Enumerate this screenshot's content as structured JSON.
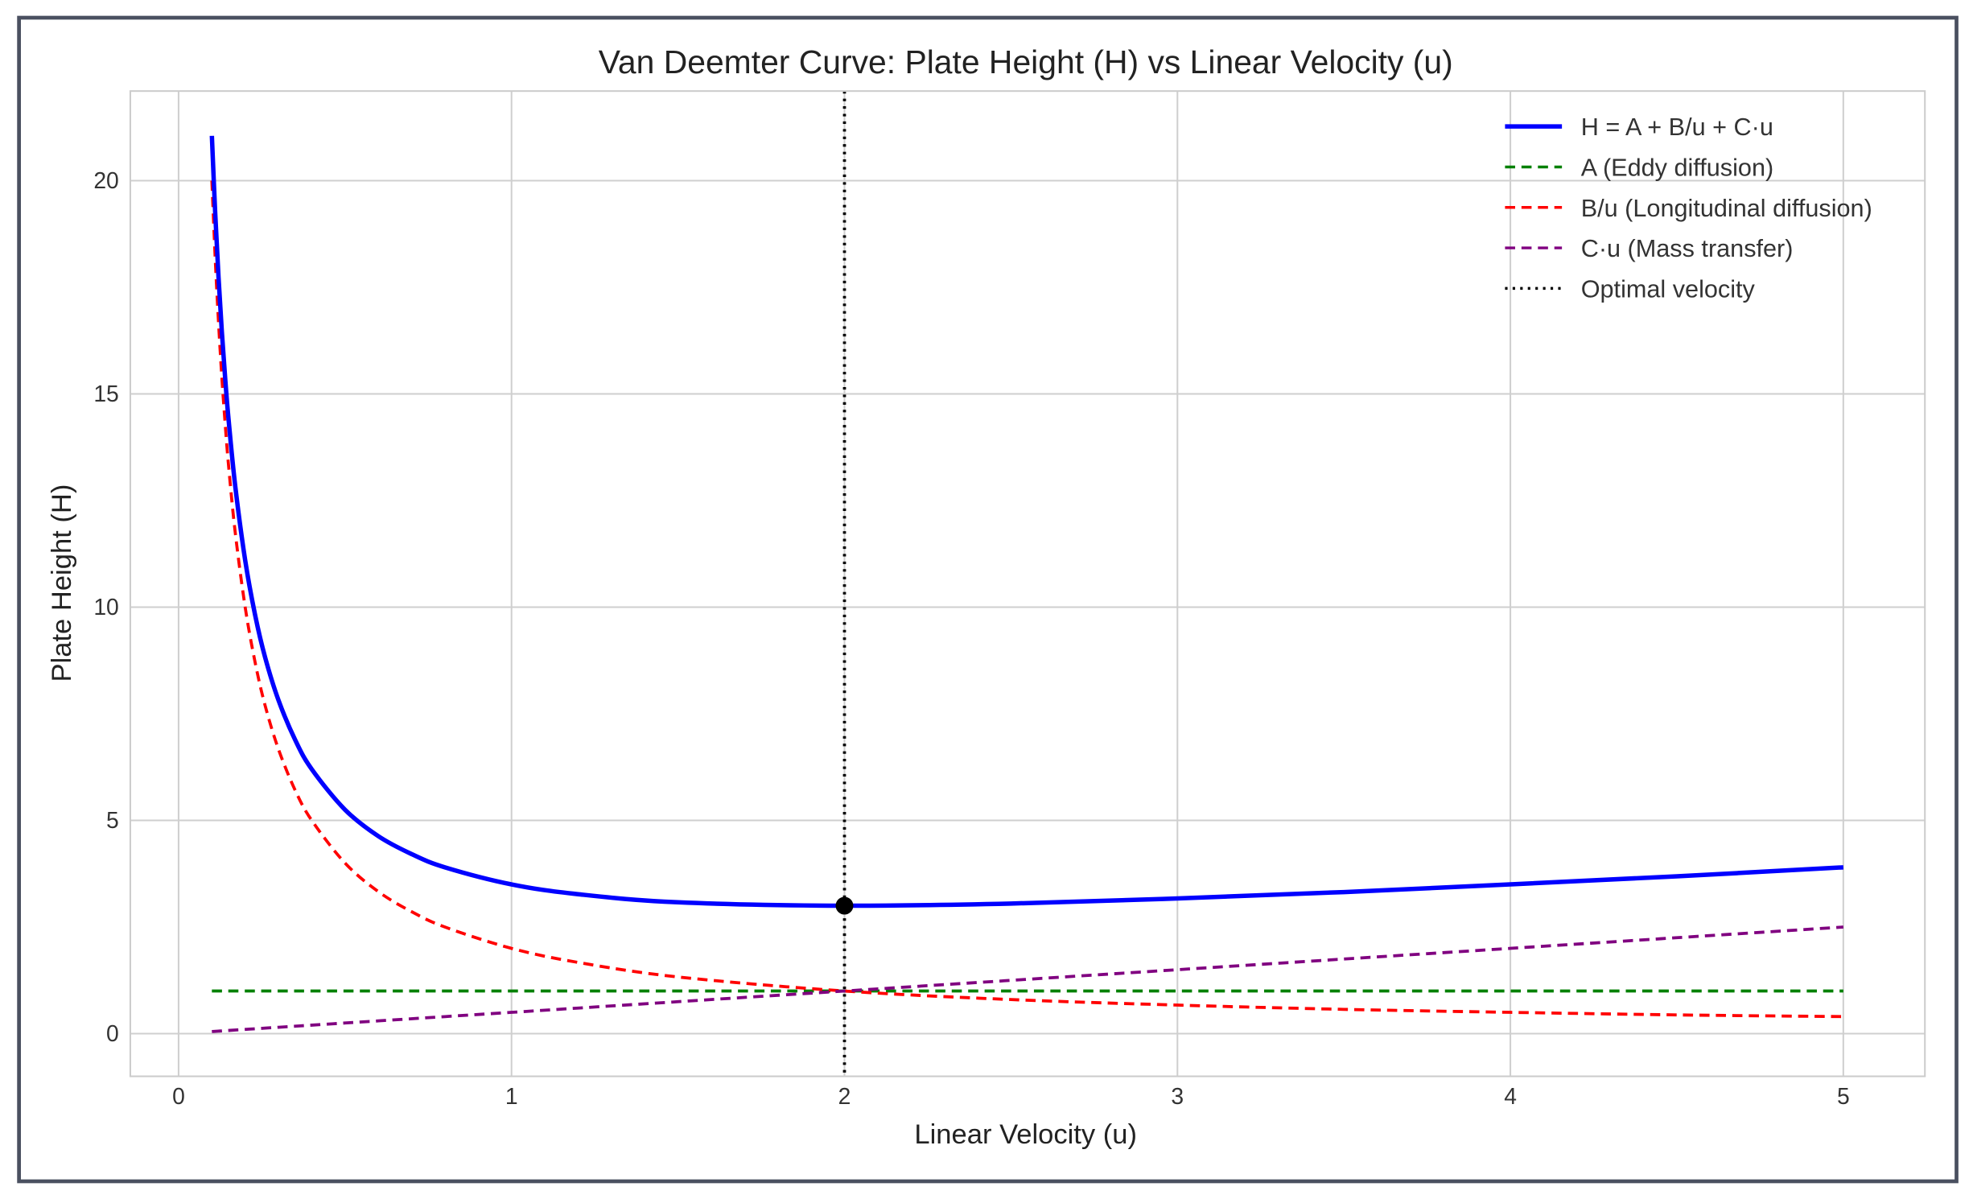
{
  "chart_data": {
    "type": "line",
    "title": "Van Deemter Curve: Plate Height (H) vs Linear Velocity (u)",
    "xlabel": "Linear Velocity (u)",
    "ylabel": "Plate Height (H)",
    "xlim": [
      -0.145,
      5.245
    ],
    "ylim": [
      -1.0,
      22.1
    ],
    "xticks": [
      0,
      1,
      2,
      3,
      4,
      5
    ],
    "yticks": [
      0,
      5,
      10,
      15,
      20
    ],
    "grid": true,
    "legend_position": "top-right",
    "x": [
      0.1,
      0.11,
      0.12,
      0.13,
      0.14,
      0.15,
      0.17,
      0.2,
      0.23,
      0.26,
      0.3,
      0.35,
      0.4,
      0.5,
      0.6,
      0.7,
      0.8,
      1,
      1.2,
      1.5,
      2,
      2.5,
      3,
      3.5,
      4,
      4.5,
      5
    ],
    "series": [
      {
        "name": "H = A + B/u + C·u",
        "color": "#0000ff",
        "style": "solid",
        "values": [
          21.05,
          19.24,
          17.73,
          16.45,
          15.36,
          14.41,
          12.85,
          11.1,
          9.81,
          8.82,
          7.82,
          6.89,
          6.2,
          5.25,
          4.63,
          4.21,
          3.9,
          3.5,
          3.27,
          3.08,
          3,
          3.05,
          3.17,
          3.32,
          3.5,
          3.69,
          3.9
        ]
      },
      {
        "name": "A (Eddy diffusion)",
        "color": "#008000",
        "style": "dashed",
        "values": [
          1,
          1,
          1,
          1,
          1,
          1,
          1,
          1,
          1,
          1,
          1,
          1,
          1,
          1,
          1,
          1,
          1,
          1,
          1,
          1,
          1,
          1,
          1,
          1,
          1,
          1,
          1
        ]
      },
      {
        "name": "B/u (Longitudinal diffusion)",
        "color": "#ff0000",
        "style": "dashed",
        "values": [
          20,
          18.18,
          16.67,
          15.38,
          14.29,
          13.33,
          11.76,
          10,
          8.7,
          7.69,
          6.67,
          5.71,
          5,
          4,
          3.33,
          2.86,
          2.5,
          2,
          1.67,
          1.33,
          1,
          0.8,
          0.67,
          0.57,
          0.5,
          0.44,
          0.4
        ]
      },
      {
        "name": "C·u (Mass transfer)",
        "color": "#800080",
        "style": "dashed",
        "values": [
          0.05,
          0.055,
          0.06,
          0.065,
          0.07,
          0.075,
          0.085,
          0.1,
          0.115,
          0.13,
          0.15,
          0.175,
          0.2,
          0.25,
          0.3,
          0.35,
          0.4,
          0.5,
          0.6,
          0.75,
          1,
          1.25,
          1.5,
          1.75,
          2,
          2.25,
          2.5
        ]
      }
    ],
    "vline": {
      "name": "Optimal velocity",
      "x": 2,
      "color": "#000000",
      "style": "dotted"
    },
    "optimum_point": {
      "x": 2,
      "y": 3,
      "color": "#000000"
    }
  }
}
